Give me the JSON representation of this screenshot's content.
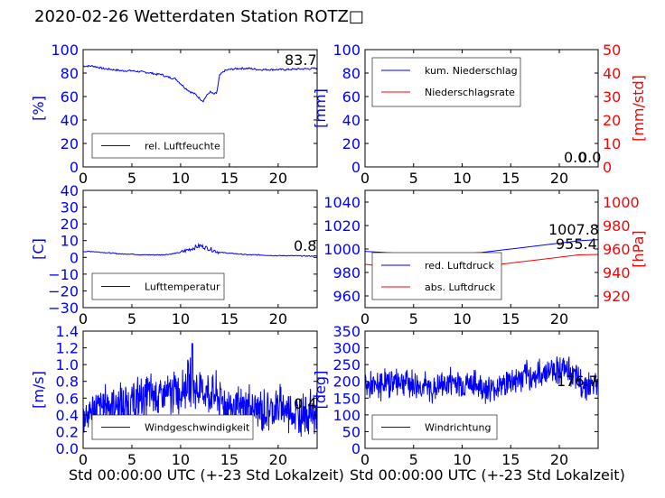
{
  "title": "2020-02-26 Wetterdaten Station ROTZ",
  "title_glyph": "□",
  "chart_data": [
    {
      "id": "humidity",
      "type": "line",
      "xlim": [
        0,
        24
      ],
      "xticks": [
        "0",
        "5",
        "10",
        "15",
        "20"
      ],
      "ylim": [
        0,
        100
      ],
      "yticks": [
        "0",
        "20",
        "40",
        "60",
        "80",
        "100"
      ],
      "ylabel": "[%]",
      "axis_color": "#0000ff",
      "legend_placement": "lower-left",
      "annotations": [
        "83.7"
      ],
      "series": [
        {
          "name": "rel. Luftfeuchte",
          "color": "#0000ff",
          "x": [
            0,
            1,
            2,
            3,
            4,
            5,
            6,
            7,
            7.5,
            8,
            8.5,
            9,
            9.5,
            10,
            10.5,
            11,
            11.5,
            12,
            12.3,
            12.6,
            13,
            13.4,
            13.7,
            14,
            14.5,
            15,
            16,
            17,
            18,
            19,
            20,
            21,
            22,
            23,
            24
          ],
          "y": [
            86,
            86,
            84,
            83,
            82,
            82,
            81,
            80,
            79,
            79,
            77,
            76,
            75,
            71,
            67,
            64,
            62,
            58,
            56,
            60,
            64,
            62,
            63,
            78,
            82,
            83,
            84,
            84,
            83,
            83,
            83,
            83,
            83.5,
            83.7,
            84
          ]
        }
      ]
    },
    {
      "id": "precipitation",
      "type": "line",
      "xlim": [
        0,
        24
      ],
      "xticks": [
        "0",
        "5",
        "10",
        "15",
        "20"
      ],
      "ylim": [
        0,
        100
      ],
      "yticks": [
        "0",
        "20",
        "40",
        "60",
        "80",
        "100"
      ],
      "ylabel": "[mm]",
      "axis_color": "#0000ff",
      "y2lim": [
        0,
        50
      ],
      "y2ticks": [
        "0",
        "10",
        "20",
        "30",
        "40",
        "50"
      ],
      "y2label": "[mm/std]",
      "axis2_color": "#ff0000",
      "legend_placement": "upper-left",
      "annotations": [
        "0.0",
        "0.0"
      ],
      "series": [
        {
          "name": "kum. Niederschlag",
          "color": "#0000ff",
          "axis": "left",
          "x": [
            0,
            24
          ],
          "y": [
            0,
            0
          ]
        },
        {
          "name": "Niederschlagsrate",
          "color": "#ff0000",
          "axis": "right",
          "x": [
            0,
            24
          ],
          "y": [
            0,
            0
          ]
        }
      ]
    },
    {
      "id": "temperature",
      "type": "line",
      "xlim": [
        0,
        24
      ],
      "xticks": [
        "0",
        "5",
        "10",
        "15",
        "20"
      ],
      "ylim": [
        -30,
        40
      ],
      "yticks": [
        "−30",
        "−20",
        "−10",
        "0",
        "10",
        "20",
        "30",
        "40"
      ],
      "ylabel": "[C]",
      "axis_color": "#0000ff",
      "legend_placement": "lower-left",
      "annotations": [
        "0.8"
      ],
      "series": [
        {
          "name": "Lufttemperatur",
          "color": "#0000ff",
          "x": [
            0,
            1,
            2,
            3,
            4,
            5,
            6,
            7,
            8,
            9,
            10,
            10.5,
            11,
            11.5,
            12,
            12.5,
            13,
            13.5,
            14,
            15,
            16,
            17,
            18,
            19,
            20,
            21,
            22,
            23,
            24
          ],
          "y": [
            3.5,
            3.5,
            3,
            2.5,
            2,
            2,
            1.5,
            1.5,
            1.5,
            2,
            3,
            4,
            5,
            6,
            7,
            6,
            5,
            4,
            3,
            2.5,
            2,
            1.5,
            1.5,
            1.2,
            1,
            1,
            0.9,
            0.8,
            0.8
          ]
        }
      ]
    },
    {
      "id": "pressure",
      "type": "line",
      "xlim": [
        0,
        24
      ],
      "xticks": [
        "0",
        "5",
        "10",
        "15",
        "20"
      ],
      "ylim": [
        950,
        1050
      ],
      "yticks": [
        "960",
        "980",
        "1000",
        "1020",
        "1040"
      ],
      "axis_color": "#0000ff",
      "y2lim": [
        910,
        1010
      ],
      "y2ticks": [
        "920",
        "940",
        "960",
        "980",
        "1000"
      ],
      "y2label": "[hPa]",
      "axis2_color": "#ff0000",
      "legend_placement": "lower-center",
      "annotations": [
        "1007.8",
        "955.4"
      ],
      "series": [
        {
          "name": "red. Luftdruck",
          "color": "#0000ff",
          "axis": "left",
          "x": [
            0,
            2,
            4,
            6,
            8,
            10,
            12,
            14,
            16,
            18,
            20,
            22,
            24
          ],
          "y": [
            998,
            997,
            996,
            996,
            996,
            996,
            997,
            999,
            1001,
            1003,
            1005,
            1007,
            1008
          ]
        },
        {
          "name": "abs. Luftdruck",
          "color": "#ff0000",
          "axis": "right",
          "x": [
            0,
            2,
            4,
            6,
            8,
            10,
            12,
            14,
            16,
            18,
            20,
            22,
            24
          ],
          "y": [
            947,
            945,
            944,
            944,
            944,
            944,
            945,
            947,
            949,
            951,
            953,
            955,
            955.4
          ]
        }
      ]
    },
    {
      "id": "wind-speed",
      "type": "line",
      "xlim": [
        0,
        24
      ],
      "xticks": [
        "0",
        "5",
        "10",
        "15",
        "20"
      ],
      "ylim": [
        0,
        1.4
      ],
      "yticks": [
        "0.0",
        "0.2",
        "0.4",
        "0.6",
        "0.8",
        "1.0",
        "1.2",
        "1.4"
      ],
      "ylabel": "[m/s]",
      "axis_color": "#0000ff",
      "legend_placement": "lower-center",
      "annotations": [
        "0.4"
      ],
      "series": [
        {
          "name": "Windgeschwindigkeit",
          "color": "#0000ff",
          "x": [
            0,
            1,
            2,
            3,
            4,
            5,
            6,
            7,
            8,
            9,
            10,
            10.5,
            11,
            11.5,
            12,
            13,
            14,
            15,
            16,
            17,
            18,
            19,
            20,
            21,
            22,
            23,
            24
          ],
          "y": [
            0.4,
            0.45,
            0.5,
            0.55,
            0.5,
            0.55,
            0.6,
            0.65,
            0.6,
            0.65,
            0.7,
            0.75,
            0.8,
            0.7,
            0.7,
            0.65,
            0.6,
            0.5,
            0.45,
            0.5,
            0.45,
            0.45,
            0.5,
            0.45,
            0.4,
            0.45,
            0.4
          ],
          "noise": 0.28,
          "peak": {
            "x": 11.2,
            "y": 1.25
          }
        }
      ]
    },
    {
      "id": "wind-direction",
      "type": "line",
      "xlim": [
        0,
        24
      ],
      "xticks": [
        "0",
        "5",
        "10",
        "15",
        "20"
      ],
      "ylim": [
        0,
        350
      ],
      "yticks": [
        "0",
        "50",
        "100",
        "150",
        "200",
        "250",
        "300",
        "350"
      ],
      "ylabel": "[deg]",
      "axis_color": "#0000ff",
      "legend_placement": "lower-left",
      "annotations": [
        "176.7"
      ],
      "series": [
        {
          "name": "Windrichtung",
          "color": "#0000ff",
          "x": [
            0,
            1,
            2,
            3,
            4,
            5,
            6,
            7,
            8,
            9,
            10,
            11,
            12,
            13,
            14,
            15,
            16,
            17,
            18,
            19,
            20,
            21,
            22,
            23,
            24
          ],
          "y": [
            190,
            180,
            195,
            200,
            205,
            190,
            185,
            175,
            190,
            200,
            195,
            190,
            185,
            175,
            190,
            200,
            210,
            215,
            220,
            235,
            240,
            230,
            200,
            190,
            180
          ],
          "noise": 45
        }
      ]
    }
  ],
  "xlabel": "Std 00:00:00 UTC (+-23 Std Lokalzeit)"
}
